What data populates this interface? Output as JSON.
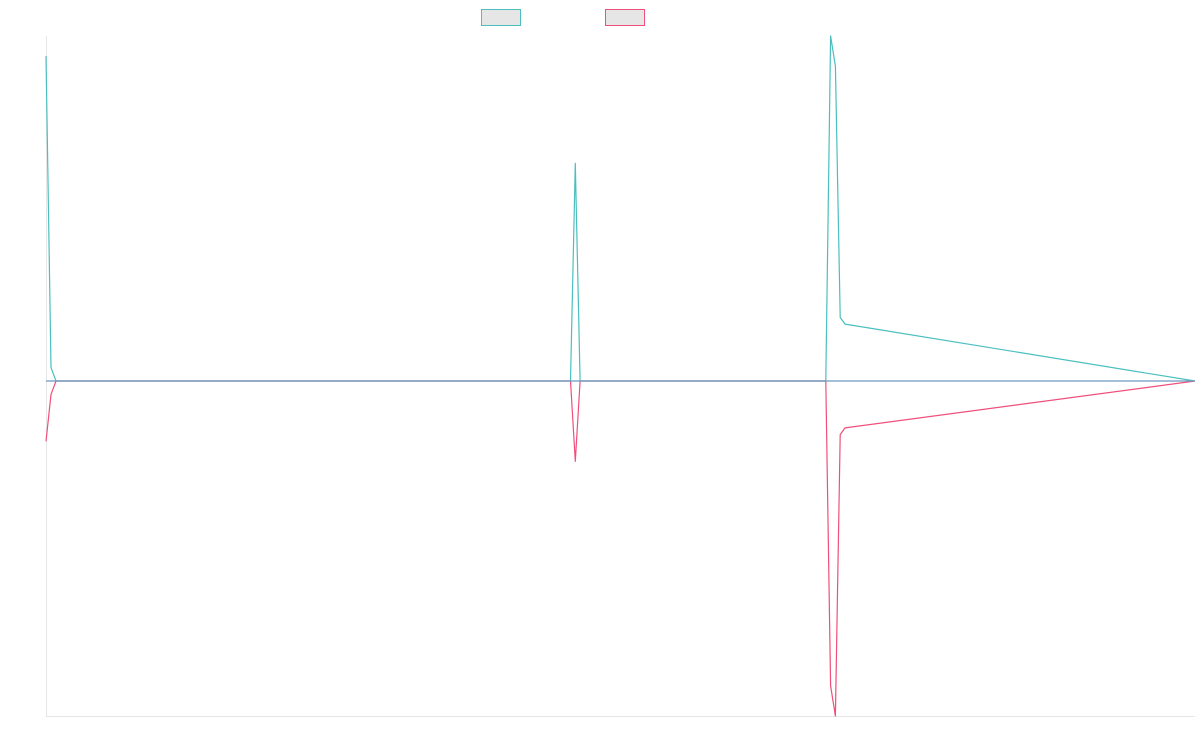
{
  "chart_data": {
    "type": "line",
    "title": "",
    "xlabel": "",
    "ylabel": "",
    "grid": false,
    "legend_placement": "top-center",
    "colors": {
      "teal": "#4bbfbf",
      "pink": "#ef4f7a",
      "baseline": "#6e9bc0",
      "axis": "#e6e6e6",
      "legend_fill": "#e6e6e6"
    },
    "x": [
      0,
      0.94,
      1.88,
      98.6,
      99.5,
      100.4,
      146.6,
      147.5,
      148.4,
      149.3,
      150.2,
      216
    ],
    "ylim": [
      -1,
      1.03
    ],
    "series": [
      {
        "values": [
          0.97,
          0.04,
          0,
          0,
          0.65,
          0,
          0,
          1.03,
          0.94,
          0.19,
          0.17,
          0
        ]
      },
      {
        "values": [
          -0.18,
          -0.04,
          0,
          0,
          -0.24,
          0,
          0,
          -0.91,
          -1,
          -0.16,
          -0.14,
          0
        ]
      }
    ]
  }
}
